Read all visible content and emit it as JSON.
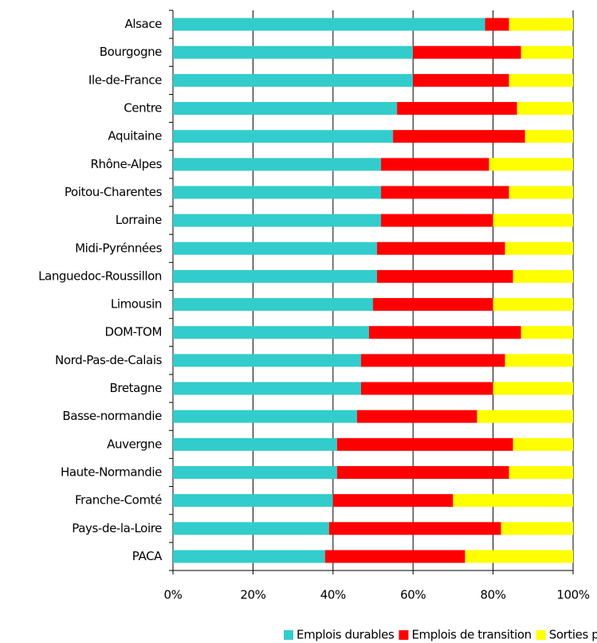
{
  "chart_data": {
    "type": "stacked_barh",
    "categories": [
      "Alsace",
      "Bourgogne",
      "Ile-de-France",
      "Centre",
      "Aquitaine",
      "Rhône-Alpes",
      "Poitou-Charentes",
      "Lorraine",
      "Midi-Pyrénnées",
      "Languedoc-Roussillon",
      "Limousin",
      "DOM-TOM",
      "Nord-Pas-de-Calais",
      "Bretagne",
      "Basse-normandie",
      "Auvergne",
      "Haute-Normandie",
      "Franche-Comté",
      "Pays-de-la-Loire",
      "PACA"
    ],
    "series": [
      {
        "name": "Emplois durables",
        "color": "#33cccc",
        "values": [
          78,
          60,
          60,
          56,
          55,
          52,
          52,
          52,
          51,
          51,
          50,
          49,
          47,
          47,
          46,
          41,
          41,
          40,
          39,
          38
        ]
      },
      {
        "name": "Emplois de transition",
        "color": "#ff0000",
        "values": [
          6,
          27,
          24,
          30,
          33,
          27,
          32,
          28,
          32,
          34,
          30,
          38,
          36,
          33,
          30,
          44,
          43,
          30,
          43,
          35
        ]
      },
      {
        "name": "Sorties positives",
        "color": "#ffff00",
        "values": [
          16,
          13,
          16,
          14,
          12,
          21,
          16,
          20,
          17,
          15,
          20,
          13,
          17,
          20,
          24,
          15,
          16,
          30,
          18,
          27
        ]
      }
    ],
    "xlim": [
      0,
      100
    ],
    "xticks": [
      {
        "value": 0,
        "label": "0%"
      },
      {
        "value": 20,
        "label": "20%"
      },
      {
        "value": 40,
        "label": "40%"
      },
      {
        "value": 60,
        "label": "60%"
      },
      {
        "value": 80,
        "label": "80%"
      },
      {
        "value": 100,
        "label": "100%"
      }
    ],
    "grid": true,
    "legend": "bottom"
  }
}
